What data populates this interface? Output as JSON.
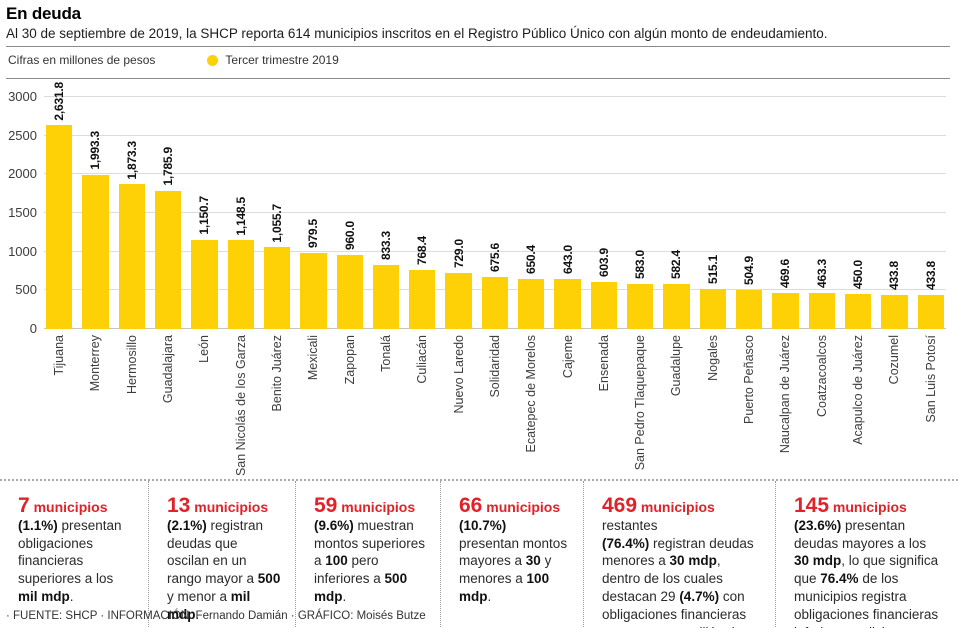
{
  "header": {
    "title": "En deuda",
    "subtitle": "Al 30 de septiembre de 2019, la SHCP reporta 614 municipios inscritos en el Registro Público Único con algún monto de endeudamiento.",
    "units_label": "Cifras en millones de pesos",
    "legend_series": "Tercer trimestre 2019"
  },
  "colors": {
    "bar_yellow": "#fdd105",
    "accent_red": "#e02229"
  },
  "chart_data": {
    "type": "bar",
    "title": "En deuda",
    "xlabel": "",
    "ylabel": "Cifras en millones de pesos",
    "ylim": [
      0,
      3000
    ],
    "yticks": [
      0,
      500,
      1000,
      1500,
      2000,
      2500,
      3000
    ],
    "grid": true,
    "legend": [
      "Tercer trimestre 2019"
    ],
    "categories": [
      "Tijuana",
      "Monterrey",
      "Hermosillo",
      "Guadalajara",
      "León",
      "San Nicolás de los Garza",
      "Benito Juárez",
      "Mexicali",
      "Zapopan",
      "Tonalá",
      "Culiacán",
      "Nuevo Laredo",
      "Solidaridad",
      "Ecatepec de Morelos",
      "Cajeme",
      "Ensenada",
      "San Pedro Tlaquepaque",
      "Guadalupe",
      "Nogales",
      "Puerto Peñasco",
      "Naucalpan de Juárez",
      "Coatzacoalcos",
      "Acapulco de Juárez",
      "Cozumel",
      "San Luis Potosí"
    ],
    "values": [
      2631.8,
      1993.3,
      1873.3,
      1785.9,
      1150.7,
      1148.5,
      1055.7,
      979.5,
      960.0,
      833.3,
      768.4,
      729.0,
      675.6,
      650.4,
      643.0,
      603.9,
      583.0,
      582.4,
      515.1,
      504.9,
      469.6,
      463.3,
      450.0,
      433.8,
      433.8
    ],
    "value_labels": [
      "2,631.8",
      "1,993.3",
      "1,873.3",
      "1,785.9",
      "1,150.7",
      "1,148.5",
      "1,055.7",
      "979.5",
      "960.0",
      "833.3",
      "768.4",
      "729.0",
      "675.6",
      "650.4",
      "643.0",
      "603.9",
      "583.0",
      "582.4",
      "515.1",
      "504.9",
      "469.6",
      "463.3",
      "450.0",
      "433.8",
      "433.8"
    ]
  },
  "annotations": {
    "blocks": [
      [
        {
          "t": "7",
          "s": "n"
        },
        {
          "t": " municipios",
          "s": "r"
        },
        {
          "s": "br"
        },
        {
          "t": "(1.1%)",
          "s": "b"
        },
        {
          "t": " presentan obligaciones financieras superiores a los ",
          "s": "p"
        },
        {
          "t": "mil mdp",
          "s": "b"
        },
        {
          "t": ".",
          "s": "p"
        }
      ],
      [
        {
          "t": "13",
          "s": "n"
        },
        {
          "t": " municipios",
          "s": "r"
        },
        {
          "s": "br"
        },
        {
          "t": "(2.1%)",
          "s": "b"
        },
        {
          "t": " registran deudas que oscilan en un rango mayor a ",
          "s": "p"
        },
        {
          "t": "500",
          "s": "b"
        },
        {
          "t": " y menor a ",
          "s": "p"
        },
        {
          "t": "mil mdp",
          "s": "b"
        },
        {
          "t": ".",
          "s": "p"
        }
      ],
      [
        {
          "t": "59",
          "s": "n"
        },
        {
          "t": " municipios",
          "s": "r"
        },
        {
          "s": "br"
        },
        {
          "t": "(9.6%)",
          "s": "b"
        },
        {
          "t": " muestran montos superiores a ",
          "s": "p"
        },
        {
          "t": "100",
          "s": "b"
        },
        {
          "t": " pero inferiores a ",
          "s": "p"
        },
        {
          "t": "500 mdp",
          "s": "b"
        },
        {
          "t": ".",
          "s": "p"
        }
      ],
      [
        {
          "t": "66",
          "s": "n"
        },
        {
          "t": " municipios",
          "s": "r"
        },
        {
          "s": "br"
        },
        {
          "t": "(10.7%)",
          "s": "b"
        },
        {
          "t": " presentan montos mayores a ",
          "s": "p"
        },
        {
          "t": "30",
          "s": "b"
        },
        {
          "t": " y menores a ",
          "s": "p"
        },
        {
          "t": "100 mdp",
          "s": "b"
        },
        {
          "t": ".",
          "s": "p"
        }
      ],
      [
        {
          "t": "469",
          "s": "n"
        },
        {
          "t": " municipios",
          "s": "r"
        },
        {
          "t": " restantes",
          "s": "p"
        },
        {
          "s": "br"
        },
        {
          "t": "(76.4%)",
          "s": "b"
        },
        {
          "t": " registran deudas menores a ",
          "s": "p"
        },
        {
          "t": "30 mdp",
          "s": "b"
        },
        {
          "t": ", dentro de los cuales destacan 29 ",
          "s": "p"
        },
        {
          "t": "(4.7%)",
          "s": "b"
        },
        {
          "t": " con obligaciones financieras menores a un millón de pesos.",
          "s": "p"
        }
      ],
      [
        {
          "t": "145",
          "s": "n"
        },
        {
          "t": " municipios",
          "s": "r"
        },
        {
          "s": "br"
        },
        {
          "t": "(23.6%)",
          "s": "b"
        },
        {
          "t": " presentan deudas mayores a los ",
          "s": "p"
        },
        {
          "t": "30 mdp",
          "s": "b"
        },
        {
          "t": ", lo que significa que ",
          "s": "p"
        },
        {
          "t": "76.4%",
          "s": "b"
        },
        {
          "t": " de los municipios registra obligaciones financieras inferiores a dicho monto.",
          "s": "p"
        }
      ]
    ]
  },
  "footer": {
    "credits": "· FUENTE: SHCP · INFORMACIÓN: Fernando Damián · GRÁFICO: Moisés Butze"
  }
}
